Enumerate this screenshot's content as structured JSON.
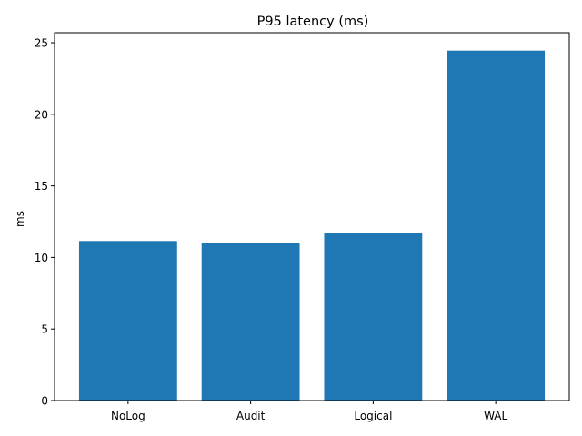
{
  "chart_data": {
    "type": "bar",
    "title": "P95 latency (ms)",
    "xlabel": "",
    "ylabel": "ms",
    "categories": [
      "NoLog",
      "Audit",
      "Logical",
      "WAL"
    ],
    "values": [
      11.15,
      11.02,
      11.72,
      24.45
    ],
    "ylim": [
      0,
      25.7
    ],
    "yticks": [
      0,
      5,
      10,
      15,
      20,
      25
    ],
    "grid": false,
    "legend": "none",
    "bar_color": "#1f77b4"
  }
}
